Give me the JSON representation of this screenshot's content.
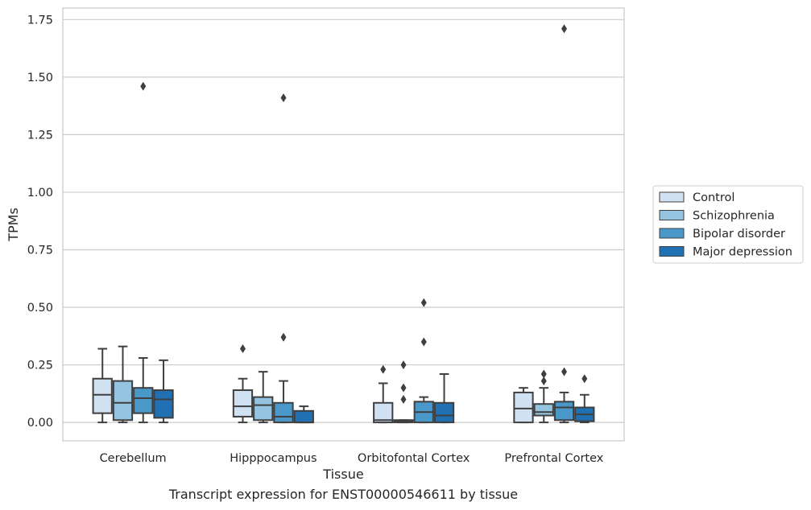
{
  "chart_data": {
    "type": "box",
    "xlabel": "Tissue",
    "ylabel": "TPMs",
    "caption": "Transcript expression for ENST00000546611 by tissue",
    "ylim": [
      -0.08,
      1.8
    ],
    "yticks": [
      "0.00",
      "0.25",
      "0.50",
      "0.75",
      "1.00",
      "1.25",
      "1.50",
      "1.75"
    ],
    "grid": "horizontal",
    "legend_position": "right",
    "categories": [
      "Cerebellum",
      "Hipppocampus",
      "Orbitofontal Cortex",
      "Prefrontal Cortex"
    ],
    "series": [
      {
        "name": "Control",
        "color": "#d0e1f2",
        "boxes": [
          {
            "whislo": 0.0,
            "q1": 0.04,
            "med": 0.12,
            "q3": 0.19,
            "whishi": 0.32,
            "fliers": []
          },
          {
            "whislo": 0.0,
            "q1": 0.025,
            "med": 0.07,
            "q3": 0.14,
            "whishi": 0.19,
            "fliers": [
              0.32
            ]
          },
          {
            "whislo": 0.0,
            "q1": 0.0,
            "med": 0.01,
            "q3": 0.085,
            "whishi": 0.17,
            "fliers": [
              0.23
            ]
          },
          {
            "whislo": 0.0,
            "q1": 0.0,
            "med": 0.06,
            "q3": 0.13,
            "whishi": 0.15,
            "fliers": []
          }
        ]
      },
      {
        "name": "Schizophrenia",
        "color": "#94c4df",
        "boxes": [
          {
            "whislo": 0.0,
            "q1": 0.01,
            "med": 0.085,
            "q3": 0.18,
            "whishi": 0.33,
            "fliers": []
          },
          {
            "whislo": 0.0,
            "q1": 0.01,
            "med": 0.075,
            "q3": 0.11,
            "whishi": 0.22,
            "fliers": []
          },
          {
            "whislo": 0.0,
            "q1": 0.0,
            "med": 0.005,
            "q3": 0.01,
            "whishi": 0.01,
            "fliers": [
              0.1,
              0.15,
              0.25
            ]
          },
          {
            "whislo": 0.0,
            "q1": 0.03,
            "med": 0.045,
            "q3": 0.08,
            "whishi": 0.15,
            "fliers": [
              0.18,
              0.21
            ]
          }
        ]
      },
      {
        "name": "Bipolar disorder",
        "color": "#4a98c9",
        "boxes": [
          {
            "whislo": 0.0,
            "q1": 0.04,
            "med": 0.105,
            "q3": 0.15,
            "whishi": 0.28,
            "fliers": [
              1.46
            ]
          },
          {
            "whislo": 0.0,
            "q1": 0.0,
            "med": 0.025,
            "q3": 0.085,
            "whishi": 0.18,
            "fliers": [
              0.37,
              1.41
            ]
          },
          {
            "whislo": 0.0,
            "q1": 0.0,
            "med": 0.045,
            "q3": 0.09,
            "whishi": 0.11,
            "fliers": [
              0.35,
              0.52
            ]
          },
          {
            "whislo": 0.0,
            "q1": 0.01,
            "med": 0.065,
            "q3": 0.09,
            "whishi": 0.13,
            "fliers": [
              0.22,
              1.71
            ]
          }
        ]
      },
      {
        "name": "Major depression",
        "color": "#2070b4",
        "boxes": [
          {
            "whislo": 0.0,
            "q1": 0.02,
            "med": 0.1,
            "q3": 0.14,
            "whishi": 0.27,
            "fliers": []
          },
          {
            "whislo": 0.0,
            "q1": 0.0,
            "med": 0.0,
            "q3": 0.05,
            "whishi": 0.07,
            "fliers": []
          },
          {
            "whislo": 0.0,
            "q1": 0.0,
            "med": 0.03,
            "q3": 0.085,
            "whishi": 0.21,
            "fliers": []
          },
          {
            "whislo": 0.0,
            "q1": 0.005,
            "med": 0.035,
            "q3": 0.065,
            "whishi": 0.12,
            "fliers": [
              0.19
            ]
          }
        ]
      }
    ]
  }
}
